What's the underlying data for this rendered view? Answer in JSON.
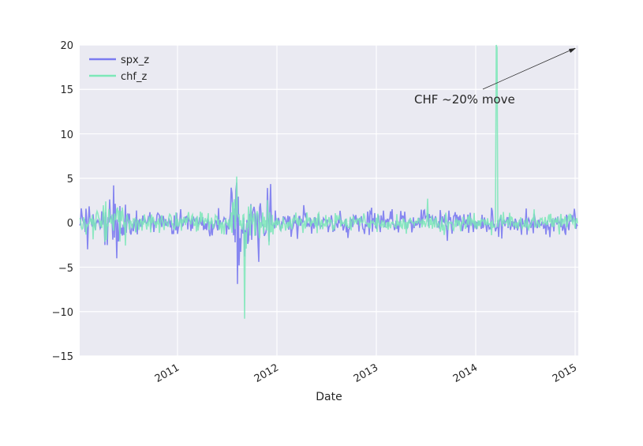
{
  "chart_data": {
    "type": "line",
    "title": "",
    "xlabel": "Date",
    "ylabel": "",
    "ylim": [
      -15,
      20
    ],
    "yticks": [
      -15,
      -10,
      -5,
      0,
      5,
      10,
      15,
      20
    ],
    "ytick_labels": [
      "−15",
      "−10",
      "−5",
      "0",
      "5",
      "10",
      "15",
      "20"
    ],
    "xlim": [
      "2010-01",
      "2015-01-20"
    ],
    "xticks": [
      "2011",
      "2012",
      "2013",
      "2014",
      "2015"
    ],
    "grid": true,
    "legend_position": "upper left",
    "series": [
      {
        "name": "spx_z",
        "color": "#7b7bf0",
        "description": "daily z-score of S&P 500 returns, mostly within ±3, spike down to about -7 in Aug 2011, max about 4.5"
      },
      {
        "name": "chf_z",
        "color": "#7de8b8",
        "description": "daily z-score of CHF returns, mostly within ±2, spike to about 5 and -11 in Aug/Sep 2011, final spike to about 20 in Jan 2015"
      }
    ],
    "key_points": [
      {
        "series": "spx_z",
        "date": "2010-05",
        "value": 4.2
      },
      {
        "series": "spx_z",
        "date": "2010-05",
        "value": -4.0
      },
      {
        "series": "spx_z",
        "date": "2011-08",
        "value": 4.5
      },
      {
        "series": "spx_z",
        "date": "2011-08",
        "value": -6.9
      },
      {
        "series": "chf_z",
        "date": "2011-08",
        "value": 5.2
      },
      {
        "series": "chf_z",
        "date": "2011-09",
        "value": -10.8
      },
      {
        "series": "chf_z",
        "date": "2015-01-15",
        "value": 20.0
      }
    ],
    "annotations": [
      {
        "text": "CHF ~20% move",
        "xy": [
          "2015-01-15",
          19.7
        ],
        "xytext": [
          "2013-05",
          13.5
        ],
        "arrow": true
      }
    ]
  },
  "legend": {
    "items": [
      {
        "label": "spx_z",
        "color": "#7b7bf0"
      },
      {
        "label": "chf_z",
        "color": "#7de8b8"
      }
    ]
  },
  "axes": {
    "xlabel": "Date",
    "xticks": [
      "2011",
      "2012",
      "2013",
      "2014",
      "2015"
    ],
    "yticks": [
      "20",
      "15",
      "10",
      "5",
      "0",
      "−5",
      "−10",
      "−15"
    ]
  },
  "annotation": {
    "text": "CHF ~20% move"
  }
}
